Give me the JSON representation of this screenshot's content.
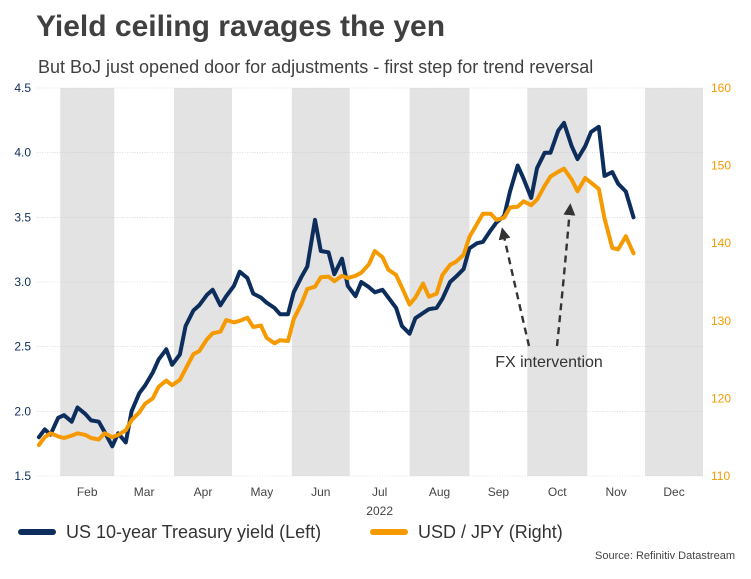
{
  "title": "Yield ceiling ravages the yen",
  "subtitle": "But BoJ just opened door for adjustments - first step for trend reversal",
  "source": "Source: Refinitiv Datastream",
  "colors": {
    "left_series": "#0d2e5c",
    "right_series": "#f59a00",
    "shade": "#e3e3e3"
  },
  "chart_data": {
    "type": "line",
    "x_ticks": [
      "Feb",
      "Mar",
      "Apr",
      "May",
      "Jun",
      "Jul",
      "Aug",
      "Sep",
      "Oct",
      "Nov",
      "Dec"
    ],
    "year_label": "2022",
    "y_left": {
      "ticks": [
        "1.5",
        "2.0",
        "2.5",
        "3.0",
        "3.5",
        "4.0",
        "4.5"
      ],
      "range": [
        1.5,
        4.5
      ]
    },
    "y_right": {
      "ticks": [
        "110",
        "120",
        "130",
        "140",
        "150",
        "160"
      ],
      "range": [
        110,
        160
      ]
    },
    "shaded_months": [
      "Feb",
      "Apr",
      "Jun",
      "Aug",
      "Oct",
      "Dec"
    ],
    "annotation": {
      "text": "FX intervention"
    },
    "grid": true,
    "series": [
      {
        "name": "US 10-year Treasury yield (Left)",
        "axis": "left",
        "x": [
          "2022-01-21",
          "2022-01-24",
          "2022-01-27",
          "2022-01-31",
          "2022-02-03",
          "2022-02-07",
          "2022-02-10",
          "2022-02-14",
          "2022-02-17",
          "2022-02-21",
          "2022-02-24",
          "2022-02-28",
          "2022-03-03",
          "2022-03-07",
          "2022-03-10",
          "2022-03-14",
          "2022-03-17",
          "2022-03-21",
          "2022-03-24",
          "2022-03-28",
          "2022-03-31",
          "2022-04-04",
          "2022-04-07",
          "2022-04-11",
          "2022-04-14",
          "2022-04-18",
          "2022-04-21",
          "2022-04-25",
          "2022-04-28",
          "2022-05-02",
          "2022-05-05",
          "2022-05-09",
          "2022-05-12",
          "2022-05-16",
          "2022-05-19",
          "2022-05-23",
          "2022-05-26",
          "2022-05-30",
          "2022-06-02",
          "2022-06-06",
          "2022-06-09",
          "2022-06-13",
          "2022-06-16",
          "2022-06-20",
          "2022-06-23",
          "2022-06-27",
          "2022-06-30",
          "2022-07-04",
          "2022-07-07",
          "2022-07-11",
          "2022-07-14",
          "2022-07-18",
          "2022-07-21",
          "2022-07-25",
          "2022-07-28",
          "2022-08-01",
          "2022-08-04",
          "2022-08-08",
          "2022-08-11",
          "2022-08-15",
          "2022-08-18",
          "2022-08-22",
          "2022-08-25",
          "2022-08-29",
          "2022-09-01",
          "2022-09-05",
          "2022-09-08",
          "2022-09-12",
          "2022-09-15",
          "2022-09-19",
          "2022-09-22",
          "2022-09-26",
          "2022-09-29",
          "2022-10-03",
          "2022-10-06",
          "2022-10-10",
          "2022-10-13",
          "2022-10-17",
          "2022-10-20",
          "2022-10-24",
          "2022-10-27",
          "2022-10-31",
          "2022-11-03",
          "2022-11-07",
          "2022-11-10",
          "2022-11-14",
          "2022-11-17",
          "2022-11-21",
          "2022-11-25"
        ],
        "values": [
          1.8,
          1.86,
          1.82,
          1.95,
          1.97,
          1.92,
          2.03,
          1.98,
          1.93,
          1.92,
          1.84,
          1.73,
          1.83,
          1.76,
          2.0,
          2.14,
          2.2,
          2.3,
          2.4,
          2.48,
          2.36,
          2.44,
          2.66,
          2.78,
          2.82,
          2.9,
          2.94,
          2.82,
          2.89,
          2.97,
          3.08,
          3.03,
          2.91,
          2.88,
          2.84,
          2.8,
          2.75,
          2.75,
          2.92,
          3.04,
          3.12,
          3.48,
          3.24,
          3.23,
          3.06,
          3.18,
          2.97,
          2.89,
          3.0,
          2.96,
          2.92,
          2.94,
          2.88,
          2.8,
          2.66,
          2.6,
          2.72,
          2.76,
          2.79,
          2.8,
          2.87,
          3.0,
          3.04,
          3.1,
          3.26,
          3.3,
          3.31,
          3.4,
          3.46,
          3.51,
          3.7,
          3.9,
          3.8,
          3.65,
          3.88,
          4.0,
          4.0,
          4.17,
          4.23,
          4.05,
          3.95,
          4.05,
          4.16,
          4.2,
          3.82,
          3.85,
          3.76,
          3.7,
          3.5
        ]
      },
      {
        "name": "USD / JPY (Right)",
        "axis": "right",
        "x": [
          "2022-01-21",
          "2022-01-24",
          "2022-01-27",
          "2022-01-31",
          "2022-02-03",
          "2022-02-07",
          "2022-02-10",
          "2022-02-14",
          "2022-02-17",
          "2022-02-21",
          "2022-02-24",
          "2022-02-28",
          "2022-03-03",
          "2022-03-07",
          "2022-03-10",
          "2022-03-14",
          "2022-03-17",
          "2022-03-21",
          "2022-03-24",
          "2022-03-28",
          "2022-03-31",
          "2022-04-04",
          "2022-04-07",
          "2022-04-11",
          "2022-04-14",
          "2022-04-18",
          "2022-04-21",
          "2022-04-25",
          "2022-04-28",
          "2022-05-02",
          "2022-05-05",
          "2022-05-09",
          "2022-05-12",
          "2022-05-16",
          "2022-05-19",
          "2022-05-23",
          "2022-05-26",
          "2022-05-30",
          "2022-06-02",
          "2022-06-06",
          "2022-06-09",
          "2022-06-13",
          "2022-06-16",
          "2022-06-20",
          "2022-06-23",
          "2022-06-27",
          "2022-06-30",
          "2022-07-04",
          "2022-07-07",
          "2022-07-11",
          "2022-07-14",
          "2022-07-18",
          "2022-07-21",
          "2022-07-25",
          "2022-07-28",
          "2022-08-01",
          "2022-08-04",
          "2022-08-08",
          "2022-08-11",
          "2022-08-15",
          "2022-08-18",
          "2022-08-22",
          "2022-08-25",
          "2022-08-29",
          "2022-09-01",
          "2022-09-05",
          "2022-09-08",
          "2022-09-12",
          "2022-09-15",
          "2022-09-19",
          "2022-09-22",
          "2022-09-26",
          "2022-09-29",
          "2022-10-03",
          "2022-10-06",
          "2022-10-10",
          "2022-10-13",
          "2022-10-17",
          "2022-10-20",
          "2022-10-24",
          "2022-10-27",
          "2022-10-31",
          "2022-11-03",
          "2022-11-07",
          "2022-11-10",
          "2022-11-14",
          "2022-11-17",
          "2022-11-21",
          "2022-11-25"
        ],
        "values": [
          114.0,
          115.0,
          115.5,
          115.1,
          114.9,
          115.2,
          115.5,
          115.3,
          114.9,
          114.7,
          115.5,
          115.0,
          115.3,
          115.9,
          117.2,
          118.2,
          119.3,
          120.0,
          121.5,
          122.3,
          121.7,
          122.4,
          123.8,
          125.7,
          126.1,
          127.6,
          128.4,
          128.6,
          130.1,
          129.8,
          130.0,
          130.4,
          129.2,
          129.4,
          127.8,
          127.1,
          127.5,
          127.4,
          130.2,
          132.2,
          134.1,
          134.4,
          135.6,
          135.7,
          135.1,
          135.8,
          135.5,
          135.8,
          136.2,
          137.3,
          139.0,
          138.2,
          136.6,
          135.9,
          134.3,
          132.1,
          133.0,
          134.8,
          133.1,
          133.5,
          135.9,
          137.2,
          137.6,
          138.5,
          140.8,
          142.5,
          143.8,
          143.8,
          143.0,
          143.3,
          144.6,
          144.7,
          145.4,
          144.9,
          145.6,
          147.4,
          148.6,
          149.2,
          149.6,
          148.2,
          146.7,
          148.4,
          147.8,
          147.0,
          143.2,
          139.4,
          139.2,
          140.9,
          138.7
        ]
      }
    ]
  }
}
